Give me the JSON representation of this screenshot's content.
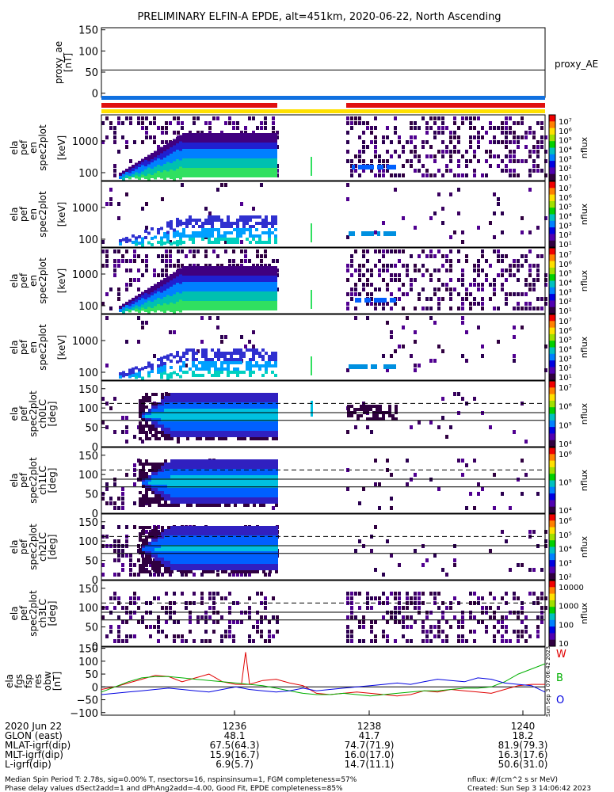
{
  "title": "PRELIMINARY ELFIN-A EPDE, alt=451km, 2020-06-22, North Ascending",
  "chart_data": [
    {
      "type": "line",
      "name": "proxy_ae",
      "ylabel_lines": [
        "proxy_ae",
        "[nT]"
      ],
      "ylim": [
        -10,
        155
      ],
      "yticks": [
        "150",
        "100",
        "50",
        "0"
      ],
      "legend": "proxy_AE",
      "series": [
        {
          "values": [
            55,
            55
          ]
        }
      ]
    },
    {
      "type": "heatmap",
      "ylabel_lines": [
        "ela",
        "pef",
        "en",
        "spec2plot",
        "",
        "[keV]"
      ],
      "yticks": [
        "1000",
        "100"
      ],
      "cbar_ticks": [
        "10⁷",
        "10⁶",
        "10⁵",
        "10⁴",
        "10³",
        "10²",
        "10¹"
      ],
      "cbar_label": "nflux"
    },
    {
      "type": "heatmap",
      "ylabel_lines": [
        "ela",
        "pef",
        "en",
        "spec2plot",
        "",
        "[keV]"
      ],
      "yticks": [
        "1000",
        "100"
      ],
      "cbar_ticks": [
        "10⁷",
        "10⁶",
        "10⁵",
        "10⁴",
        "10³",
        "10²",
        "10¹"
      ],
      "cbar_label": "nflux"
    },
    {
      "type": "heatmap",
      "ylabel_lines": [
        "ela",
        "pef",
        "en",
        "spec2plot",
        "",
        "[keV]"
      ],
      "yticks": [
        "1000",
        "100"
      ],
      "cbar_ticks": [
        "10⁷",
        "10⁶",
        "10⁵",
        "10⁴",
        "10³",
        "10²",
        "10¹"
      ],
      "cbar_label": "nflux"
    },
    {
      "type": "heatmap",
      "ylabel_lines": [
        "ela",
        "pef",
        "en",
        "spec2plot",
        "",
        "[keV]"
      ],
      "yticks": [
        "1000",
        "100"
      ],
      "cbar_ticks": [
        "10⁷",
        "10⁶",
        "10⁵",
        "10⁴",
        "10³",
        "10²",
        "10¹"
      ],
      "cbar_label": "nflux"
    },
    {
      "type": "heatmap",
      "ylabel_lines": [
        "ela",
        "pef",
        "spec2plot",
        "ch0LC",
        "[deg]"
      ],
      "yticks": [
        "150",
        "100",
        "50",
        "0"
      ],
      "cbar_ticks": [
        "10⁷",
        "10⁶",
        "10⁵",
        "10⁴"
      ],
      "cbar_label": "nflux"
    },
    {
      "type": "heatmap",
      "ylabel_lines": [
        "ela",
        "pef",
        "spec2plot",
        "ch1LC",
        "[deg]"
      ],
      "yticks": [
        "150",
        "100",
        "50",
        "0"
      ],
      "cbar_ticks": [
        "10⁶",
        "10⁵",
        "10⁴"
      ],
      "cbar_label": "nflux"
    },
    {
      "type": "heatmap",
      "ylabel_lines": [
        "ela",
        "pef",
        "spec2plot",
        "ch2LC",
        "[deg]"
      ],
      "yticks": [
        "150",
        "100",
        "50",
        "0"
      ],
      "cbar_ticks": [
        "10⁶",
        "10⁵",
        "10⁴",
        "10³",
        "10²"
      ],
      "cbar_label": "nflux"
    },
    {
      "type": "heatmap",
      "ylabel_lines": [
        "ela",
        "pef",
        "spec2plot",
        "ch3LC",
        "[deg]"
      ],
      "yticks": [
        "150",
        "100",
        "50",
        "0"
      ],
      "cbar_ticks": [
        "10000",
        "1000",
        "100",
        "10"
      ],
      "cbar_label": "nflux"
    },
    {
      "type": "line",
      "ylabel_lines": [
        "ela",
        "fgs",
        "fsp",
        "res",
        "obw",
        "[nT]"
      ],
      "yticks": [
        "150",
        "100",
        "50",
        "0",
        "−50",
        "−100"
      ],
      "ylim": [
        -110,
        155
      ],
      "legend": [
        "W",
        "B",
        "O"
      ],
      "colors": [
        "#e00000",
        "#00b000",
        "#0000e0"
      ],
      "series": [
        {
          "values": [
            -10,
            0,
            15,
            30,
            45,
            40,
            20,
            35,
            50,
            20,
            10,
            10,
            25,
            30,
            15,
            5,
            -25,
            -30,
            -25,
            -20,
            -25,
            -30,
            -35,
            -30,
            -15,
            -20,
            -10,
            -15,
            -20,
            -25,
            -10,
            5,
            10,
            10
          ]
        },
        {
          "values": [
            -20,
            0,
            20,
            35,
            40,
            40,
            35,
            30,
            25,
            20,
            15,
            10,
            5,
            -5,
            -15,
            -25,
            -30,
            -30,
            -25,
            -30,
            -35,
            -30,
            -25,
            -20,
            -15,
            -15,
            -10,
            -5,
            -5,
            0,
            20,
            50,
            70,
            90
          ]
        },
        {
          "values": [
            -30,
            -25,
            -20,
            -15,
            -10,
            -5,
            -10,
            -15,
            -20,
            -10,
            0,
            -10,
            -15,
            -20,
            -15,
            -5,
            -15,
            -10,
            -5,
            0,
            5,
            10,
            15,
            10,
            20,
            30,
            25,
            20,
            35,
            30,
            15,
            10,
            5,
            -20
          ]
        }
      ]
    }
  ],
  "right_stamp": "Sun Sep 3 07:06:42 2023",
  "xaxis": {
    "ticks": [
      "1236",
      "1238",
      "1240"
    ],
    "rows": [
      {
        "label": "2020 Jun 22",
        "values": [
          "1236",
          "1238",
          "1240"
        ]
      },
      {
        "label": "GLON (east)",
        "values": [
          "48.1",
          "41.7",
          "18.2"
        ]
      },
      {
        "label": "MLAT-igrf(dip)",
        "values": [
          "67.5(64.3)",
          "74.7(71.9)",
          "81.9(79.3)"
        ]
      },
      {
        "label": "MLT-igrf(dip)",
        "values": [
          "15.9(16.7)",
          "16.0(17.0)",
          "16.3(17.6)"
        ]
      },
      {
        "label": "L-igrf(dip)",
        "values": [
          "6.9(5.7)",
          "14.7(11.1)",
          "50.6(31.0)"
        ]
      }
    ]
  },
  "footer": {
    "line1": "Median Spin Period T: 2.78s, sig=0.00% T, nsectors=16, nspinsinsum=1, FGM completeness=57%",
    "line2": "Phase delay values dSect2add=1 and dPhAng2add=-4.00, Good Fit, EPDE completeness=85%",
    "nflux": "nflux: #/(cm^2 s sr MeV)",
    "created": "Created: Sun Sep  3 14:06:42 2023"
  }
}
